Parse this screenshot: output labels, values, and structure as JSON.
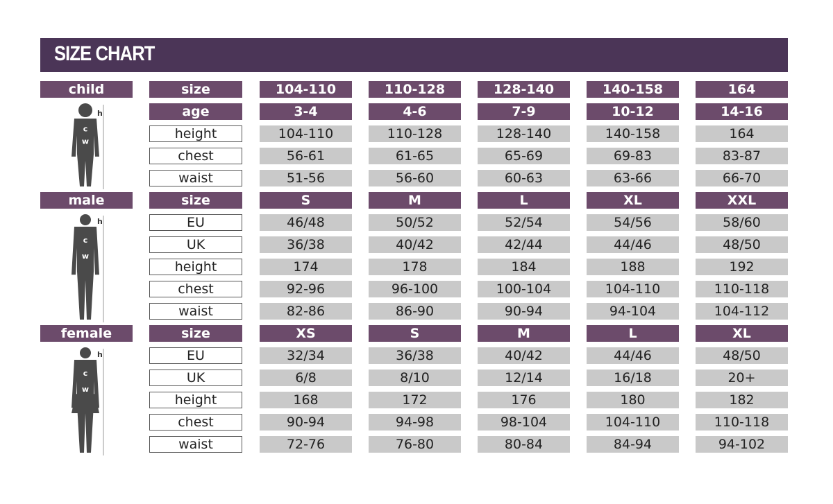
{
  "title": "SIZE CHART",
  "colors": {
    "header": "#4b3557",
    "label": "#6c4b6b",
    "cell": "#c9c9c9"
  },
  "figure_labels": {
    "h": "h",
    "c": "c",
    "w": "w"
  },
  "sections": [
    {
      "category": "child",
      "figure": "child-silhouette-icon",
      "rows": [
        {
          "label": "size",
          "header": true,
          "values": [
            "104-110",
            "110-128",
            "128-140",
            "140-158",
            "164"
          ]
        },
        {
          "label": "age",
          "header": true,
          "values": [
            "3-4",
            "4-6",
            "7-9",
            "10-12",
            "14-16"
          ]
        },
        {
          "label": "height",
          "values": [
            "104-110",
            "110-128",
            "128-140",
            "140-158",
            "164"
          ]
        },
        {
          "label": "chest",
          "values": [
            "56-61",
            "61-65",
            "65-69",
            "69-83",
            "83-87"
          ]
        },
        {
          "label": "waist",
          "values": [
            "51-56",
            "56-60",
            "60-63",
            "63-66",
            "66-70"
          ]
        }
      ]
    },
    {
      "category": "male",
      "figure": "male-silhouette-icon",
      "rows": [
        {
          "label": "size",
          "header": true,
          "values": [
            "S",
            "M",
            "L",
            "XL",
            "XXL"
          ]
        },
        {
          "label": "EU",
          "values": [
            "46/48",
            "50/52",
            "52/54",
            "54/56",
            "58/60"
          ]
        },
        {
          "label": "UK",
          "values": [
            "36/38",
            "40/42",
            "42/44",
            "44/46",
            "48/50"
          ]
        },
        {
          "label": "height",
          "values": [
            "174",
            "178",
            "184",
            "188",
            "192"
          ]
        },
        {
          "label": "chest",
          "values": [
            "92-96",
            "96-100",
            "100-104",
            "104-110",
            "110-118"
          ]
        },
        {
          "label": "waist",
          "values": [
            "82-86",
            "86-90",
            "90-94",
            "94-104",
            "104-112"
          ]
        }
      ]
    },
    {
      "category": "female",
      "figure": "female-silhouette-icon",
      "rows": [
        {
          "label": "size",
          "header": true,
          "values": [
            "XS",
            "S",
            "M",
            "L",
            "XL"
          ]
        },
        {
          "label": "EU",
          "values": [
            "32/34",
            "36/38",
            "40/42",
            "44/46",
            "48/50"
          ]
        },
        {
          "label": "UK",
          "values": [
            "6/8",
            "8/10",
            "12/14",
            "16/18",
            "20+"
          ]
        },
        {
          "label": "height",
          "values": [
            "168",
            "172",
            "176",
            "180",
            "182"
          ]
        },
        {
          "label": "chest",
          "values": [
            "90-94",
            "94-98",
            "98-104",
            "104-110",
            "110-118"
          ]
        },
        {
          "label": "waist",
          "values": [
            "72-76",
            "76-80",
            "80-84",
            "84-94",
            "94-102"
          ]
        }
      ]
    }
  ]
}
